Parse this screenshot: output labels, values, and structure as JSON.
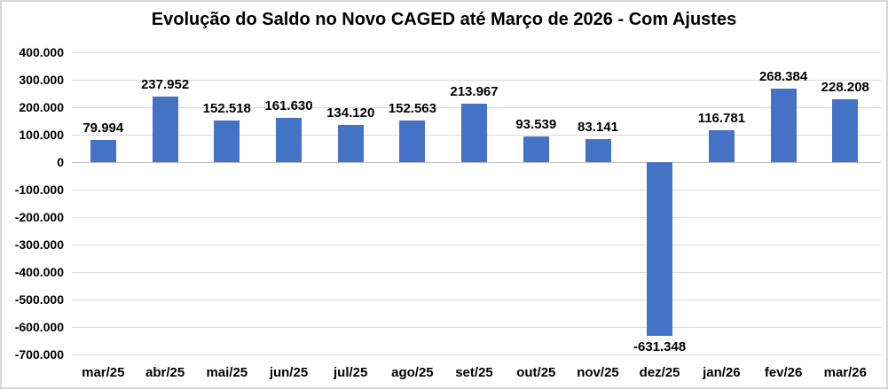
{
  "chart_data": {
    "type": "bar",
    "title": "Evolução do Saldo no Novo CAGED até Março de 2026 - Com Ajustes",
    "categories": [
      "mar/25",
      "abr/25",
      "mai/25",
      "jun/25",
      "jul/25",
      "ago/25",
      "set/25",
      "out/25",
      "nov/25",
      "dez/25",
      "jan/26",
      "fev/26",
      "mar/26"
    ],
    "values": [
      79994,
      237952,
      152518,
      161630,
      134120,
      152563,
      213967,
      93539,
      83141,
      -631348,
      116781,
      268384,
      228208
    ],
    "data_labels": [
      "79.994",
      "237.952",
      "152.518",
      "161.630",
      "134.120",
      "152.563",
      "213.967",
      "93.539",
      "83.141",
      "-631.348",
      "116.781",
      "268.384",
      "228.208"
    ],
    "y_ticks": [
      400000,
      300000,
      200000,
      100000,
      0,
      -100000,
      -200000,
      -300000,
      -400000,
      -500000,
      -600000,
      -700000
    ],
    "y_tick_labels": [
      "400.000",
      "300.000",
      "200.000",
      "100.000",
      "0",
      "-100.000",
      "-200.000",
      "-300.000",
      "-400.000",
      "-500.000",
      "-600.000",
      "-700.000"
    ],
    "xlabel": "",
    "ylabel": "",
    "ylim": [
      -700000,
      400000
    ],
    "grid": true,
    "legend": "none",
    "colors": {
      "bar": "#4472C4",
      "gridline": "#D9D9D9",
      "zero_axis_line": "#BFBFBF",
      "text": "#000000",
      "background": "#FFFFFF",
      "frame_border": "#D6D6D6"
    }
  }
}
